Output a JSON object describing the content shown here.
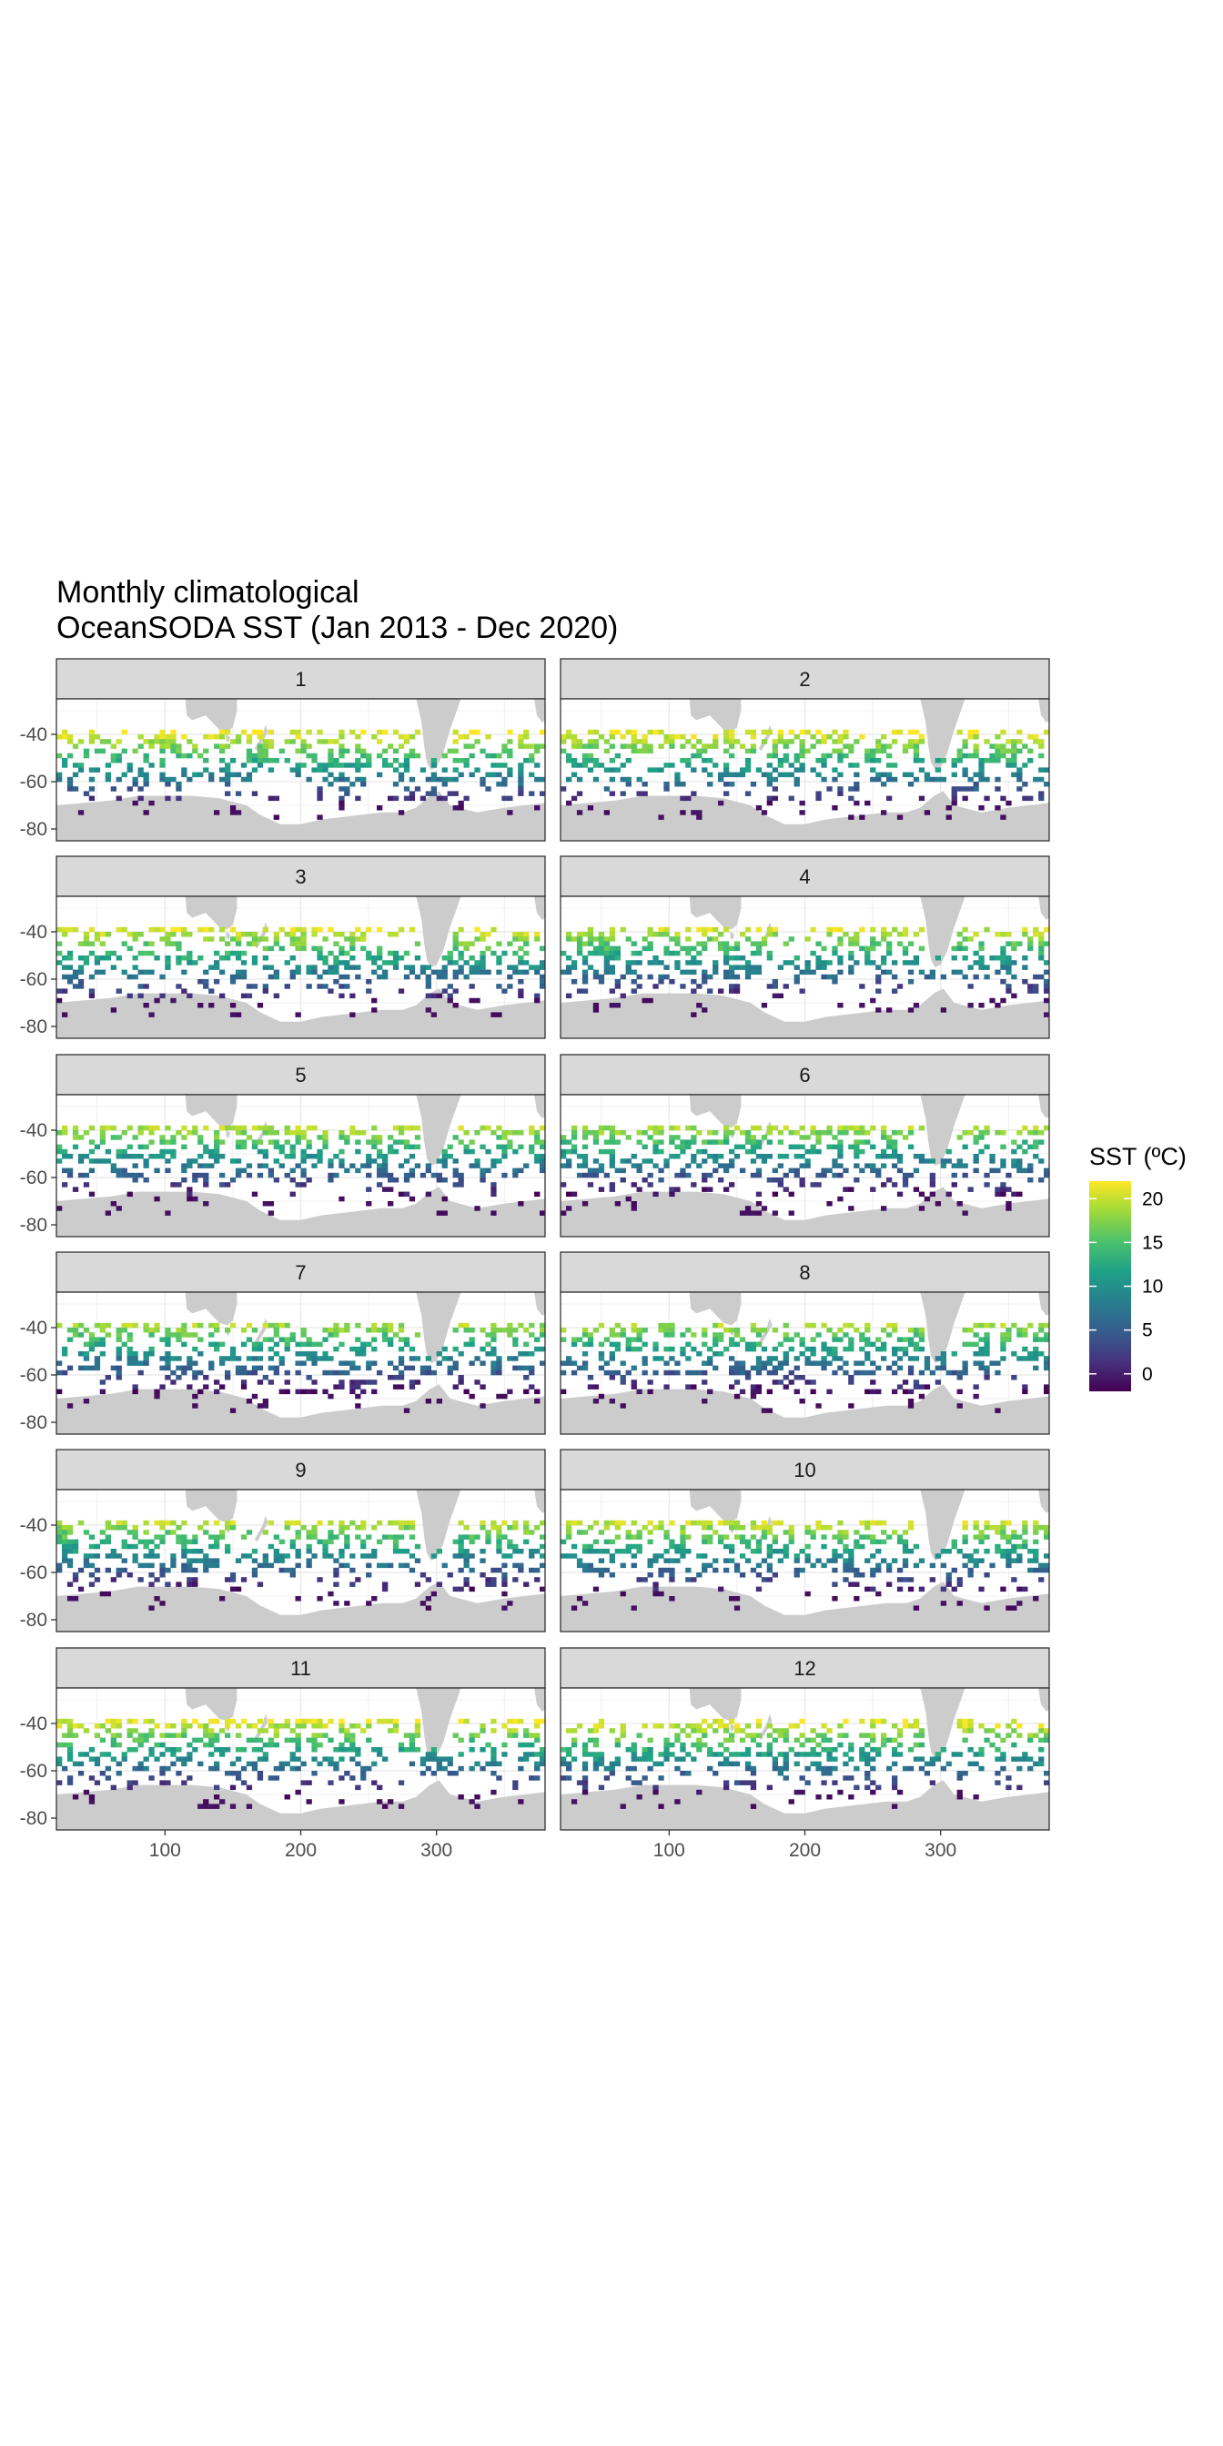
{
  "chart_data": {
    "type": "heatmap",
    "title_lines": [
      "Monthly climatological",
      "OceanSODA SST (Jan 2013 - Dec 2020)"
    ],
    "facets": [
      "1",
      "2",
      "3",
      "4",
      "5",
      "6",
      "7",
      "8",
      "9",
      "10",
      "11",
      "12"
    ],
    "x_ticks": [
      "100",
      "200",
      "300"
    ],
    "x_tick_values": [
      100,
      200,
      300
    ],
    "y_ticks": [
      "-40",
      "-60",
      "-80"
    ],
    "y_tick_values": [
      -40,
      -60,
      -80
    ],
    "xlim": [
      20,
      380
    ],
    "ylim": [
      -85,
      -25
    ],
    "xlabel": "",
    "ylabel": "",
    "legend": {
      "title": "SST (ºC)",
      "labels": [
        "20",
        "15",
        "10",
        "5",
        "0"
      ],
      "values": [
        20,
        15,
        10,
        5,
        0
      ],
      "range": [
        -2,
        22
      ],
      "colormap": "viridis",
      "placement": "right"
    },
    "land_color": "#cccccc",
    "strip_color": "#d9d9d9",
    "cell_lon_step": 4,
    "cell_lat_step": 2,
    "sst_pattern_note": "cells sampled along tracks, ~20ºC near -38º lat decreasing to ~-1ºC near -70º"
  }
}
